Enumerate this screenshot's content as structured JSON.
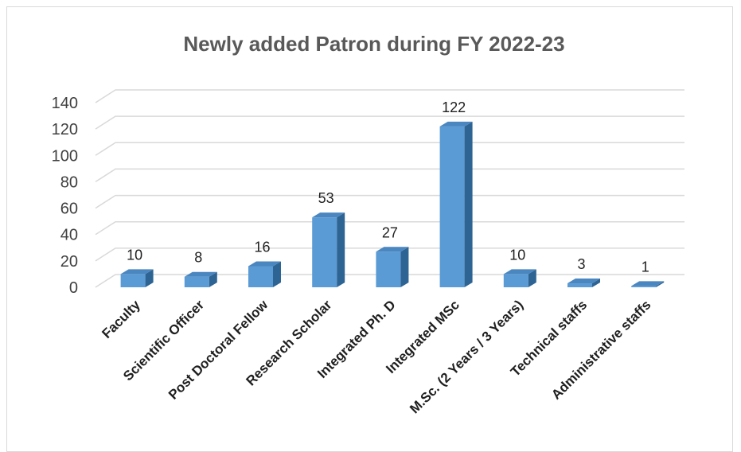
{
  "chart_data": {
    "type": "bar",
    "title": "Newly added Patron during FY 2022-23",
    "xlabel": "",
    "ylabel": "",
    "ylim": [
      0,
      140
    ],
    "yticks": [
      0,
      20,
      40,
      60,
      80,
      100,
      120,
      140
    ],
    "categories": [
      "Faculty",
      "Scientific Officer",
      "Post Doctoral Fellow",
      "Research Scholar",
      "Integrated Ph. D",
      "Integrated MSc",
      "M.Sc. (2 Years / 3 Years)",
      "Technical staffs",
      "Administrative staffs"
    ],
    "values": [
      10,
      8,
      16,
      53,
      27,
      122,
      10,
      3,
      1
    ],
    "grid": true,
    "legend": "none",
    "style": "3d-column",
    "colors": {
      "bar_front": "#5b9bd5",
      "bar_top": "#4a86bf",
      "bar_side": "#2e6494",
      "gridline": "#d9d9d9",
      "title": "#595959"
    }
  }
}
